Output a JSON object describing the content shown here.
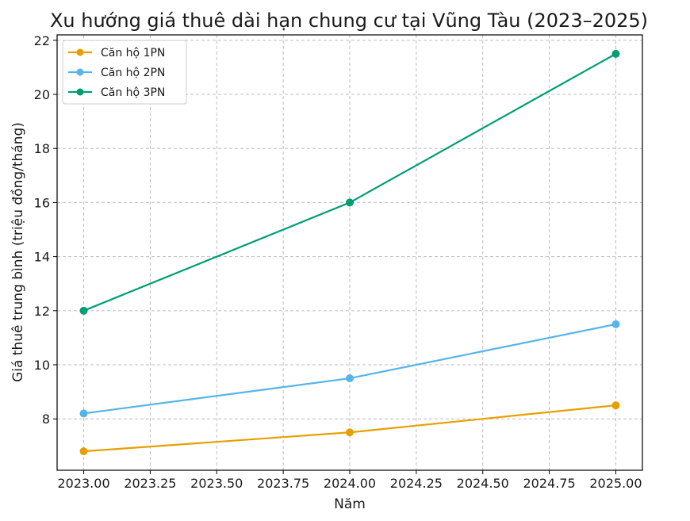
{
  "chart_data": {
    "type": "line",
    "title": "Xu hướng giá thuê dài hạn chung cư tại Vũng Tàu (2023–2025)",
    "xlabel": "Năm",
    "ylabel": "Giá thuê trung bình (triệu đồng/tháng)",
    "x": [
      2023,
      2024,
      2025
    ],
    "xlim": [
      2022.9,
      2025.1
    ],
    "ylim": [
      6.1,
      22.2
    ],
    "xticks": [
      2023.0,
      2023.25,
      2023.5,
      2023.75,
      2024.0,
      2024.25,
      2024.5,
      2024.75,
      2025.0
    ],
    "xtick_labels": [
      "2023.00",
      "2023.25",
      "2023.50",
      "2023.75",
      "2024.00",
      "2024.25",
      "2024.50",
      "2024.75",
      "2025.00"
    ],
    "yticks": [
      8,
      10,
      12,
      14,
      16,
      18,
      20,
      22
    ],
    "ytick_labels": [
      "8",
      "10",
      "12",
      "14",
      "16",
      "18",
      "20",
      "22"
    ],
    "grid": true,
    "legend_position": "top-left",
    "series": [
      {
        "name": "Căn hộ 1PN",
        "values": [
          6.8,
          7.5,
          8.5
        ],
        "color": "#E69F00"
      },
      {
        "name": "Căn hộ 2PN",
        "values": [
          8.2,
          9.5,
          11.5
        ],
        "color": "#56B4E9"
      },
      {
        "name": "Căn hộ 3PN",
        "values": [
          12.0,
          16.0,
          21.5
        ],
        "color": "#009E73"
      }
    ]
  }
}
